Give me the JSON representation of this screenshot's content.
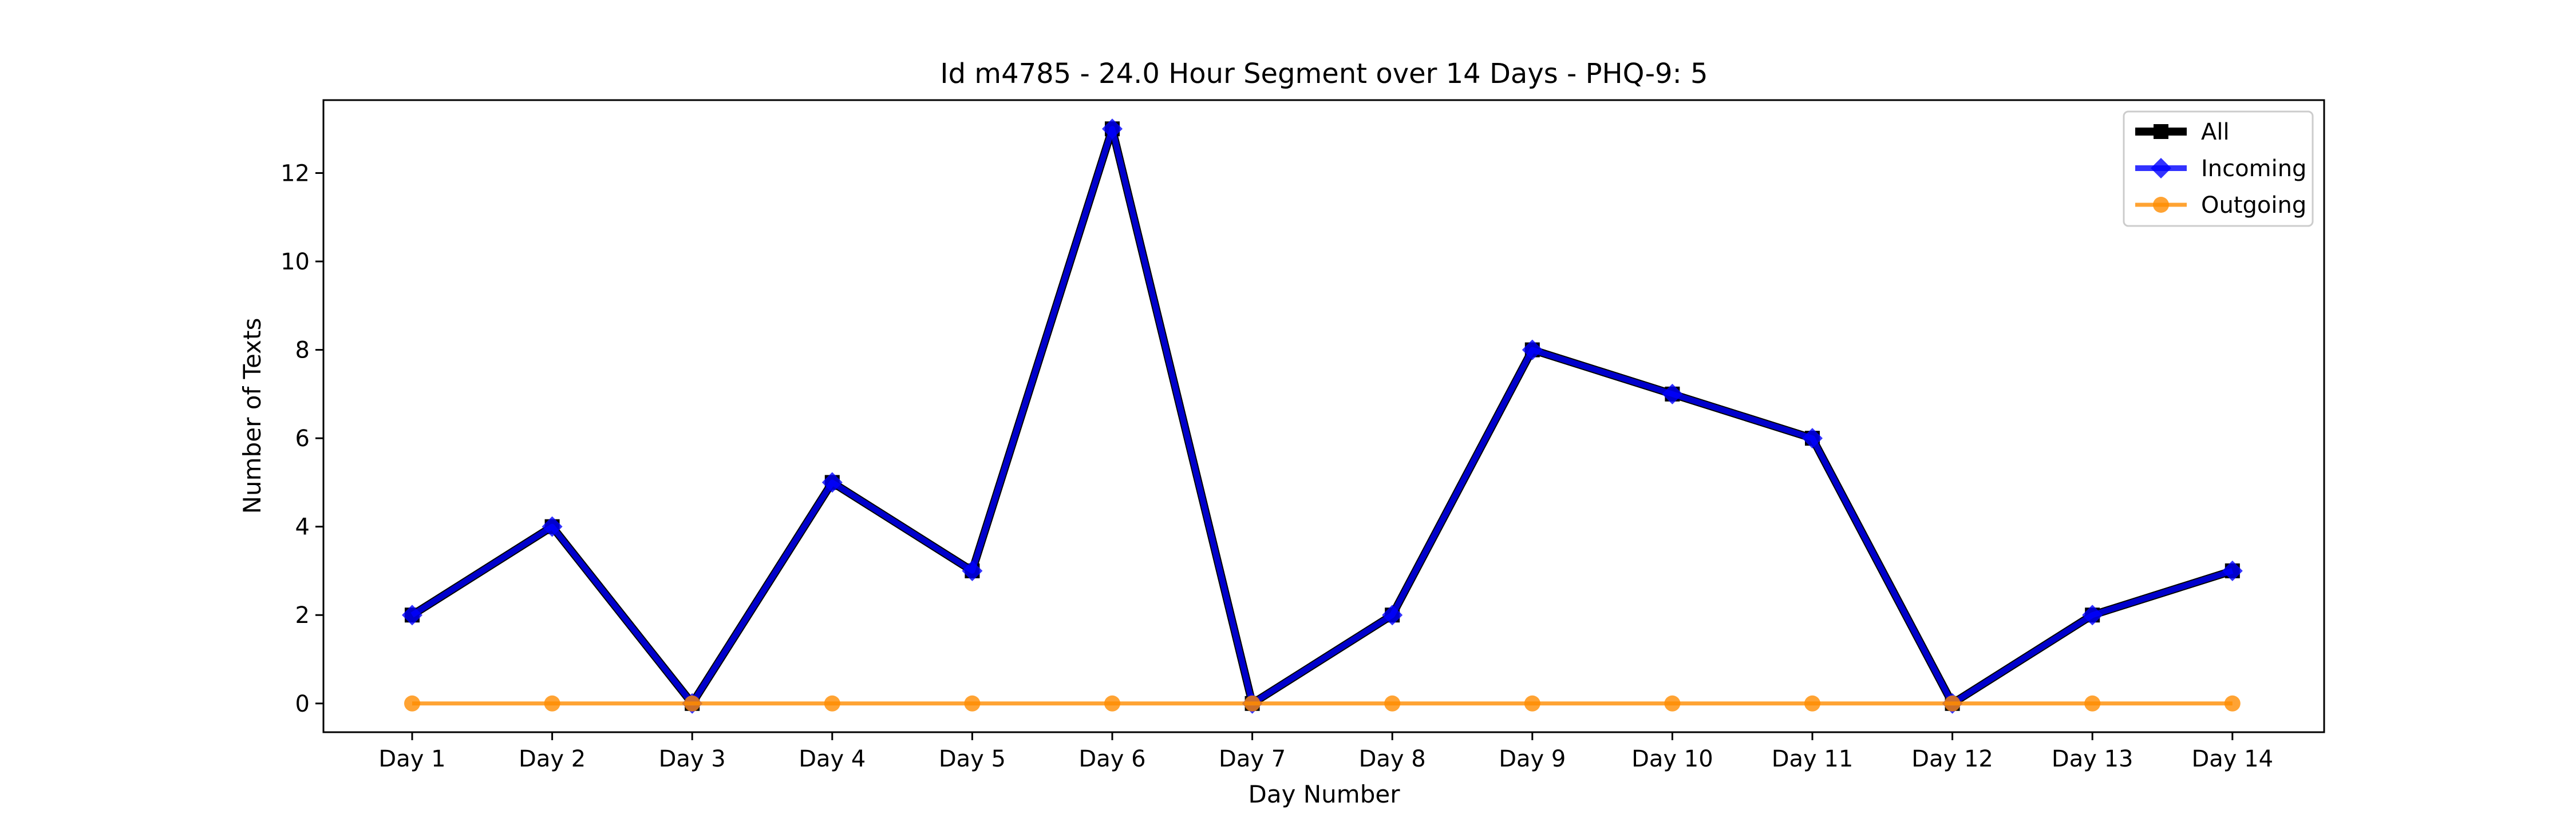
{
  "chart_data": {
    "type": "line",
    "title": "Id m4785 - 24.0 Hour Segment over 14 Days - PHQ-9: 5",
    "xlabel": "Day Number",
    "ylabel": "Number of Texts",
    "categories": [
      "Day 1",
      "Day 2",
      "Day 3",
      "Day 4",
      "Day 5",
      "Day 6",
      "Day 7",
      "Day 8",
      "Day 9",
      "Day 10",
      "Day 11",
      "Day 12",
      "Day 13",
      "Day 14"
    ],
    "ylim": [
      -0.65,
      13.65
    ],
    "yticks": [
      0,
      2,
      4,
      6,
      8,
      10,
      12
    ],
    "grid": false,
    "legend_position": "top-right",
    "series": [
      {
        "name": "All",
        "color": "#000000",
        "marker": "square",
        "values": [
          2,
          4,
          0,
          5,
          3,
          13,
          0,
          2,
          8,
          7,
          6,
          0,
          2,
          3
        ]
      },
      {
        "name": "Incoming",
        "color": "#0000ff",
        "marker": "diamond",
        "values": [
          2,
          4,
          0,
          5,
          3,
          13,
          0,
          2,
          8,
          7,
          6,
          0,
          2,
          3
        ]
      },
      {
        "name": "Outgoing",
        "color": "#ff8c00",
        "marker": "circle",
        "values": [
          0,
          0,
          0,
          0,
          0,
          0,
          0,
          0,
          0,
          0,
          0,
          0,
          0,
          0
        ]
      }
    ]
  }
}
